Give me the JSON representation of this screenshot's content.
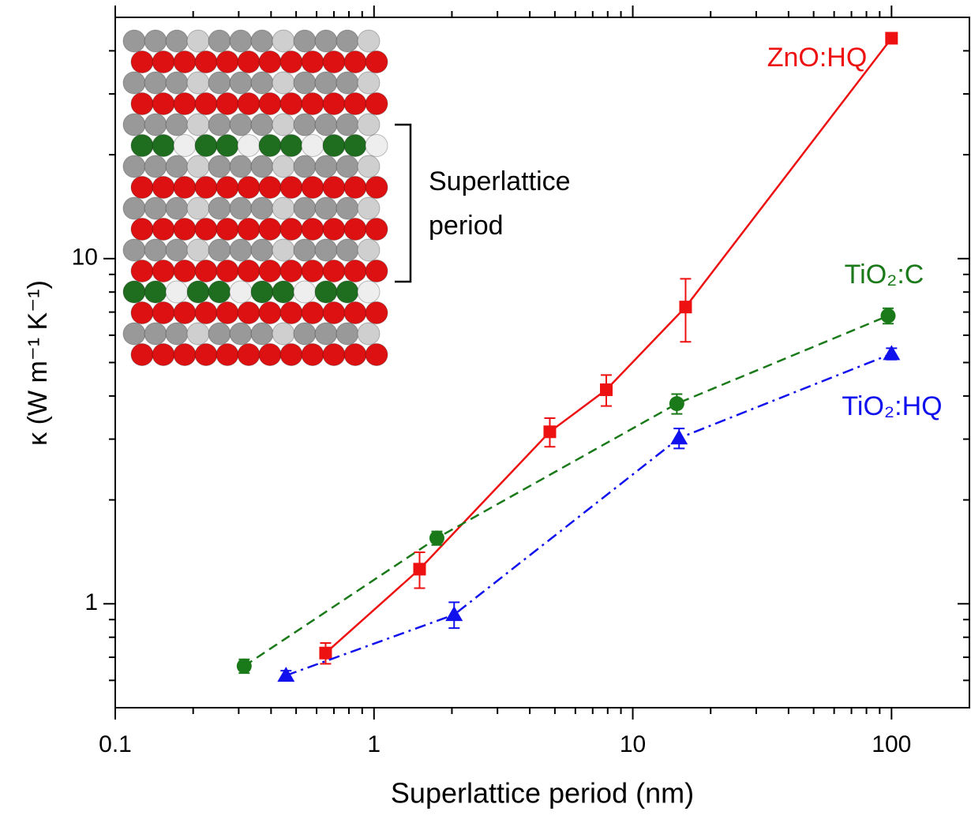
{
  "chart_data": {
    "type": "scatter",
    "log_x": true,
    "log_y": true,
    "xlabel": "Superlattice period (nm)",
    "ylabel": "κ (W m⁻¹ K⁻¹)",
    "xlim": [
      0.1,
      200
    ],
    "ylim": [
      0.5,
      50
    ],
    "xticks": [
      0.1,
      1,
      10,
      100
    ],
    "yticks": [
      1,
      10
    ],
    "inset_annotation": [
      "Superlattice",
      "period"
    ],
    "series": [
      {
        "name": "ZnO:HQ",
        "color": "#ee1111",
        "marker": "square",
        "dash": "solid",
        "x": [
          0.65,
          1.5,
          4.78,
          7.9,
          16,
          100
        ],
        "values": [
          0.72,
          1.26,
          3.15,
          4.17,
          7.24,
          43.5
        ],
        "errors": [
          0.05,
          0.15,
          0.3,
          0.43,
          1.5,
          0
        ]
      },
      {
        "name": "TiO₂:C",
        "color": "#1a7a1a",
        "marker": "circle",
        "dash": "dashed",
        "x": [
          0.315,
          1.75,
          14.8,
          97
        ],
        "values": [
          0.66,
          1.55,
          3.8,
          6.83
        ],
        "errors": [
          0.03,
          0.07,
          0.25,
          0.35
        ]
      },
      {
        "name": "TiO₂:HQ",
        "color": "#1111ee",
        "marker": "triangle",
        "dash": "dashdot",
        "x": [
          0.457,
          2.04,
          15.1,
          100
        ],
        "values": [
          0.62,
          0.93,
          3.02,
          5.3
        ],
        "errors": [
          0.02,
          0.08,
          0.2,
          0.2
        ]
      }
    ]
  }
}
